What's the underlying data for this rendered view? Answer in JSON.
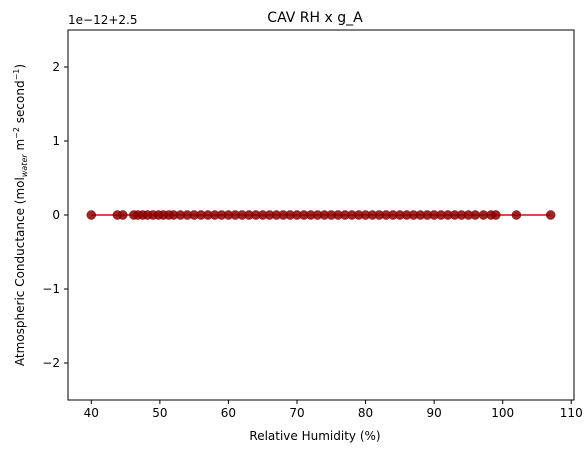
{
  "chart_data": {
    "type": "scatter",
    "title": "CAV RH x g_A",
    "xlabel": "Relative Humidity (%)",
    "ylabel_parts": {
      "pre": "Atmospheric Conductance (mol",
      "sub": "water",
      "mid1": " m",
      "sup1": "−2",
      "mid2": " second",
      "sup2": "−1",
      "post": ")"
    },
    "offset_label": "1e−12+2.5",
    "xlim": [
      36.6,
      110.4
    ],
    "ylim": [
      -2.5,
      2.5
    ],
    "xticks": [
      40,
      50,
      60,
      70,
      80,
      90,
      100,
      110
    ],
    "yticks": [
      -2,
      -1,
      0,
      1,
      2
    ],
    "ytick_labels": [
      "−2",
      "−1",
      "0",
      "1",
      "2"
    ],
    "grid": false,
    "series": [
      {
        "color": "#8b0000",
        "line_color": "#e8000b",
        "points": [
          [
            40,
            0
          ],
          [
            43.8,
            0
          ],
          [
            44.6,
            0
          ],
          [
            46.2,
            0
          ],
          [
            46.8,
            0
          ],
          [
            47.5,
            0
          ],
          [
            48.2,
            0
          ],
          [
            49,
            0
          ],
          [
            49.8,
            0
          ],
          [
            50.5,
            0
          ],
          [
            51.3,
            0
          ],
          [
            52,
            0
          ],
          [
            53,
            0
          ],
          [
            54,
            0
          ],
          [
            55,
            0
          ],
          [
            56,
            0
          ],
          [
            57,
            0
          ],
          [
            58,
            0
          ],
          [
            59,
            0
          ],
          [
            60,
            0
          ],
          [
            61,
            0
          ],
          [
            62,
            0
          ],
          [
            63,
            0
          ],
          [
            64,
            0
          ],
          [
            65,
            0
          ],
          [
            66,
            0
          ],
          [
            67,
            0
          ],
          [
            68,
            0
          ],
          [
            69,
            0
          ],
          [
            70,
            0
          ],
          [
            71,
            0
          ],
          [
            72,
            0
          ],
          [
            73,
            0
          ],
          [
            74,
            0
          ],
          [
            75,
            0
          ],
          [
            76,
            0
          ],
          [
            77,
            0
          ],
          [
            78,
            0
          ],
          [
            79,
            0
          ],
          [
            80,
            0
          ],
          [
            81,
            0
          ],
          [
            82,
            0
          ],
          [
            83,
            0
          ],
          [
            84,
            0
          ],
          [
            85,
            0
          ],
          [
            86,
            0
          ],
          [
            87,
            0
          ],
          [
            88,
            0
          ],
          [
            89,
            0
          ],
          [
            90,
            0
          ],
          [
            91,
            0
          ],
          [
            92,
            0
          ],
          [
            93,
            0
          ],
          [
            94,
            0
          ],
          [
            95,
            0
          ],
          [
            96,
            0
          ],
          [
            97.2,
            0
          ],
          [
            98.3,
            0
          ],
          [
            99,
            0
          ],
          [
            102,
            0
          ],
          [
            107,
            0
          ]
        ]
      }
    ]
  }
}
